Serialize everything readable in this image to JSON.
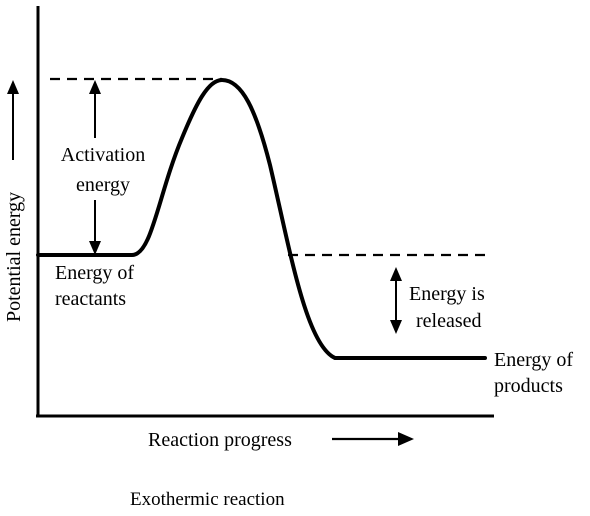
{
  "y_axis_label": "Potential energy",
  "x_axis_label": "Reaction progress",
  "caption": "Exothermic reaction",
  "labels": {
    "activation_line1": "Activation",
    "activation_line2": "energy",
    "reactants_line1": "Energy of",
    "reactants_line2": "reactants",
    "released_line1": "Energy is",
    "released_line2": "released",
    "products_line1": "Energy of",
    "products_line2": "products"
  },
  "colors": {
    "ink": "#000000",
    "background": "#ffffff"
  }
}
